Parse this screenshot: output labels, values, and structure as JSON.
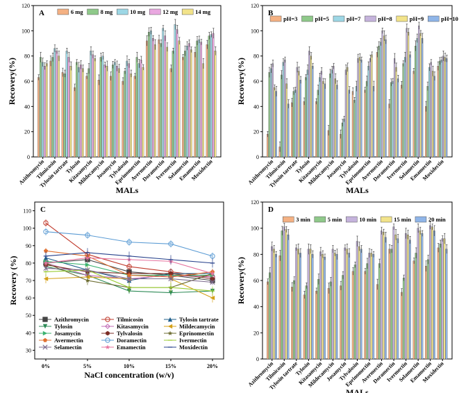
{
  "chart_data": [
    {
      "type": "bar",
      "panel": "A",
      "xlabel": "MALs",
      "ylabel": "Recovery(%)",
      "ylim": [
        0,
        120
      ],
      "yticks": [
        0,
        20,
        40,
        60,
        80,
        100,
        120
      ],
      "categories": [
        "Azithromycin",
        "Tilmicosin",
        "Tylosin tartrate",
        "Tylosin",
        "Kitasamycin",
        "Mildecamycin",
        "Josamycin",
        "Tylvalosin",
        "Eprinomectin",
        "Avermectin",
        "Doramectin",
        "Ivermectin",
        "Selamectin",
        "Emamectin",
        "Moxidectin"
      ],
      "series": [
        {
          "name": "6 mg",
          "color": "#f4b183",
          "values": [
            63,
            76,
            67,
            55,
            64,
            61,
            64,
            60,
            64,
            92,
            93,
            70,
            79,
            83,
            89
          ]
        },
        {
          "name": "8 mg",
          "color": "#8fc98a",
          "values": [
            79,
            79,
            66,
            75,
            70,
            79,
            73,
            68,
            79,
            99,
            90,
            84,
            84,
            92,
            96
          ]
        },
        {
          "name": "10 mg",
          "color": "#9dd7e5",
          "values": [
            75,
            86,
            84,
            71,
            84,
            80,
            75,
            76,
            74,
            100,
            102,
            105,
            88,
            93,
            97
          ]
        },
        {
          "name": "12 mg",
          "color": "#e9a8e0",
          "values": [
            72,
            84,
            79,
            73,
            81,
            73,
            72,
            74,
            77,
            94,
            96,
            101,
            90,
            91,
            98
          ]
        },
        {
          "name": "14 mg",
          "color": "#f2e38a",
          "values": [
            74,
            80,
            72,
            70,
            78,
            72,
            70,
            66,
            71,
            89,
            87,
            92,
            85,
            74,
            84
          ]
        }
      ]
    },
    {
      "type": "bar",
      "panel": "B",
      "xlabel": "MALs",
      "ylabel": "Recovery(%)",
      "ylim": [
        0,
        120
      ],
      "yticks": [
        0,
        20,
        40,
        60,
        80,
        100,
        120
      ],
      "categories": [
        "Azithromycin",
        "Tilmicosin",
        "Tylosin tartrate",
        "Tylosin",
        "Kitasamycin",
        "Mildecamycin",
        "Josamycin",
        "Tylvalosin",
        "Eprinomectin",
        "Avermectin",
        "Doramectin",
        "Ivermectin",
        "Selamectin",
        "Emamectin",
        "Moxidectin"
      ],
      "series": [
        {
          "name": "pH=3",
          "color": "#f4b183",
          "values": [
            18,
            8,
            43,
            44,
            44,
            21,
            18,
            52,
            53,
            83,
            42,
            57,
            68,
            40,
            72
          ]
        },
        {
          "name": "pH=5",
          "color": "#8fc98a",
          "values": [
            67,
            65,
            52,
            63,
            53,
            66,
            27,
            45,
            60,
            88,
            59,
            74,
            88,
            56,
            76
          ]
        },
        {
          "name": "pH=7",
          "color": "#9dd7e5",
          "values": [
            70,
            75,
            53,
            69,
            63,
            69,
            30,
            56,
            72,
            91,
            60,
            79,
            94,
            71,
            77
          ]
        },
        {
          "name": "pH=8",
          "color": "#c5b3dc",
          "values": [
            74,
            77,
            71,
            84,
            68,
            72,
            69,
            78,
            78,
            100,
            78,
            102,
            104,
            75,
            80
          ]
        },
        {
          "name": "pH=9",
          "color": "#f2e38a",
          "values": [
            55,
            58,
            68,
            80,
            60,
            62,
            71,
            79,
            81,
            96,
            71,
            99,
            98,
            68,
            79
          ]
        },
        {
          "name": "pH=10",
          "color": "#8fb5e8",
          "values": [
            52,
            42,
            61,
            72,
            58,
            57,
            53,
            77,
            56,
            93,
            62,
            81,
            94,
            64,
            78
          ]
        }
      ]
    },
    {
      "type": "line",
      "panel": "C",
      "xlabel": "NaCl concentration (w/v)",
      "ylabel": "Recovery (%)",
      "ylim": [
        25,
        115
      ],
      "yticks": [
        30,
        40,
        50,
        60,
        70,
        80,
        90,
        100,
        110
      ],
      "categories": [
        "0%",
        "5%",
        "10%",
        "15%",
        "20%"
      ],
      "series": [
        {
          "name": "Azithromycin",
          "color": "#444444",
          "marker": "square",
          "values": [
            80,
            82,
            75,
            73,
            70
          ]
        },
        {
          "name": "Tilmicosin",
          "color": "#c0392b",
          "marker": "circle",
          "values": [
            103,
            85,
            78,
            75,
            72
          ]
        },
        {
          "name": "Tylosin tartrate",
          "color": "#1f5f8b",
          "marker": "triangle",
          "values": [
            83,
            76,
            70,
            74,
            74
          ]
        },
        {
          "name": "Tylosin",
          "color": "#2e8b57",
          "marker": "tri-down",
          "values": [
            78,
            73,
            64,
            63,
            64
          ]
        },
        {
          "name": "Kitasamycin",
          "color": "#c06ab5",
          "marker": "diamond",
          "values": [
            80,
            73,
            71,
            73,
            72
          ]
        },
        {
          "name": "Mildecamycin",
          "color": "#d4a017",
          "marker": "tri-left",
          "values": [
            71,
            72,
            71,
            71,
            60
          ]
        },
        {
          "name": "Josamycin",
          "color": "#3cb371",
          "marker": "tri-right",
          "values": [
            81,
            79,
            73,
            73,
            73
          ]
        },
        {
          "name": "Tylvalosin",
          "color": "#7b2d26",
          "marker": "hexagon",
          "values": [
            79,
            75,
            74,
            74,
            71
          ]
        },
        {
          "name": "Eprinomectin",
          "color": "#6b6b2f",
          "marker": "star",
          "values": [
            80,
            70,
            66,
            66,
            74
          ]
        },
        {
          "name": "Avermectin",
          "color": "#e07030",
          "marker": "pentagon",
          "values": [
            87,
            84,
            73,
            72,
            75
          ]
        },
        {
          "name": "Doramectin",
          "color": "#5a9bd4",
          "marker": "circle",
          "values": [
            98,
            96,
            92,
            91,
            84
          ]
        },
        {
          "name": "Ivermectin",
          "color": "#9acd32",
          "marker": "line",
          "values": [
            75,
            76,
            66,
            66,
            64
          ]
        },
        {
          "name": "Selamectin",
          "color": "#7d6b8e",
          "marker": "x",
          "values": [
            77,
            76,
            71,
            71,
            69
          ]
        },
        {
          "name": "Emamectin",
          "color": "#e6739f",
          "marker": "star",
          "values": [
            80,
            83,
            82,
            81,
            74
          ]
        },
        {
          "name": "Moxidectin",
          "color": "#27408b",
          "marker": "line",
          "values": [
            84,
            86,
            84,
            82,
            80
          ]
        }
      ]
    },
    {
      "type": "bar",
      "panel": "D",
      "xlabel": "MALs",
      "ylabel": "Recovery(%)",
      "ylim": [
        0,
        120
      ],
      "yticks": [
        0,
        20,
        40,
        60,
        80,
        100,
        120
      ],
      "categories": [
        "Azithromycin",
        "Tilmicosin",
        "Tylosin tartrate",
        "Tylosin",
        "Kitasamycin",
        "Mildecamycin",
        "Josamycin",
        "Tylvalosin",
        "Eprinomectin",
        "Avermectin",
        "Doramectin",
        "Ivermectin",
        "Selamectin",
        "Emamectin",
        "Moxidectin"
      ],
      "series": [
        {
          "name": "3 min",
          "color": "#f4b183",
          "values": [
            59,
            79,
            55,
            49,
            52,
            54,
            56,
            67,
            67,
            57,
            84,
            51,
            75,
            71,
            85
          ]
        },
        {
          "name": "5 min",
          "color": "#8fc98a",
          "values": [
            66,
            98,
            60,
            56,
            61,
            59,
            64,
            72,
            73,
            73,
            84,
            62,
            81,
            76,
            88
          ]
        },
        {
          "name": "10 min",
          "color": "#c5b3dc",
          "values": [
            86,
            101,
            85,
            84,
            82,
            84,
            85,
            90,
            81,
            98,
            101,
            96,
            100,
            102,
            92
          ]
        },
        {
          "name": "15 min",
          "color": "#f2e38a",
          "values": [
            84,
            99,
            84,
            84,
            80,
            81,
            84,
            86,
            81,
            97,
            95,
            95,
            98,
            101,
            92
          ]
        },
        {
          "name": "20 min",
          "color": "#8fb5e8",
          "values": [
            80,
            95,
            81,
            80,
            78,
            80,
            81,
            84,
            80,
            93,
            92,
            91,
            96,
            98,
            84
          ]
        }
      ]
    }
  ]
}
